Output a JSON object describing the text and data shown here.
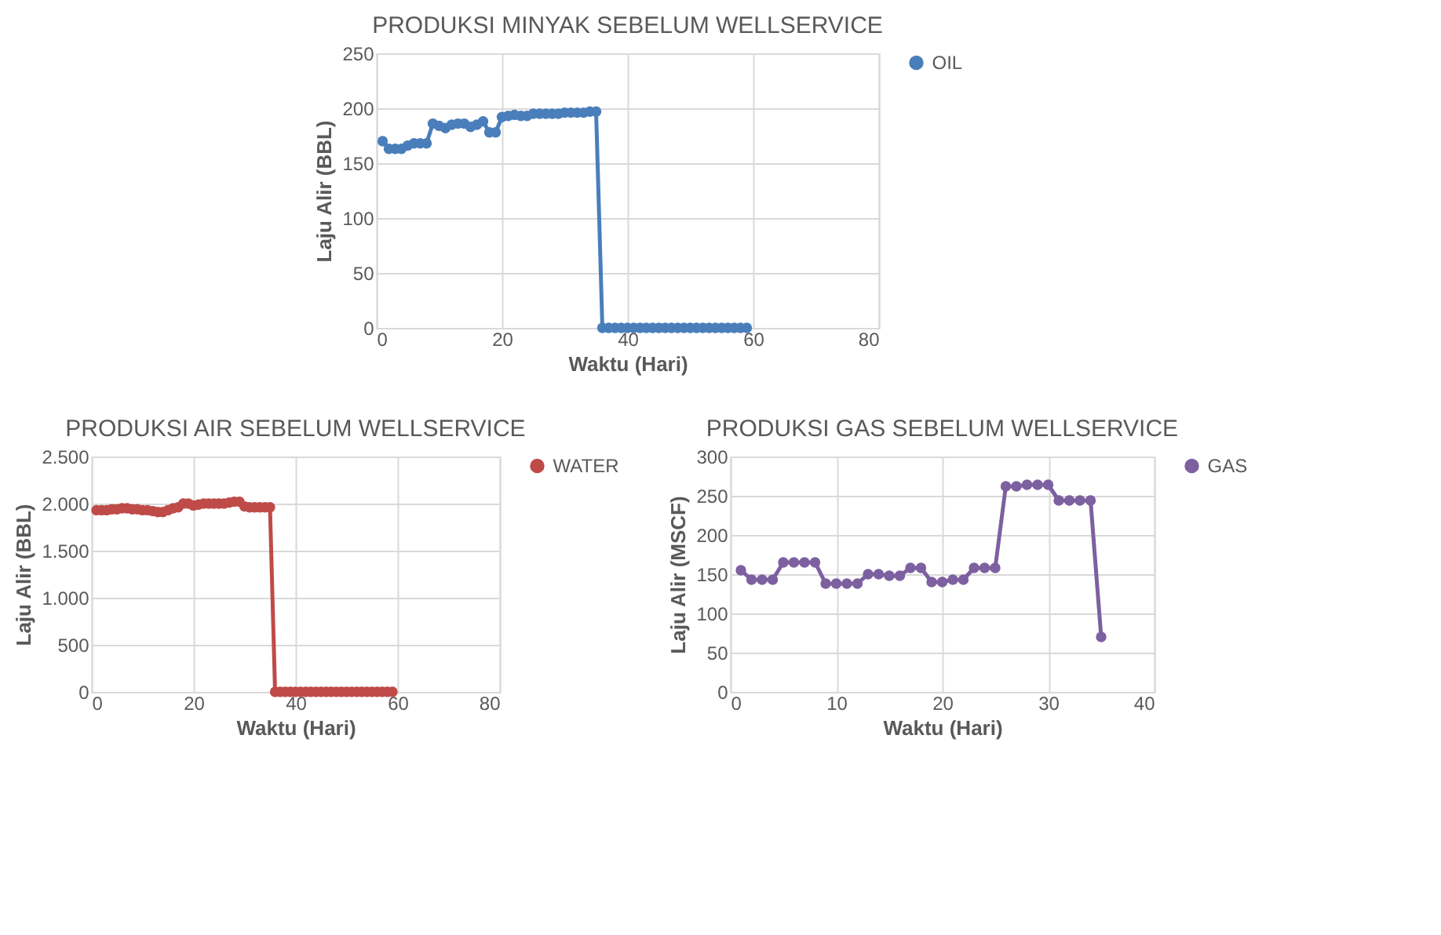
{
  "chart_data": [
    {
      "type": "line",
      "title": "PRODUKSI MINYAK SEBELUM WELLSERVICE",
      "xlabel": "Waktu (Hari)",
      "ylabel": "Laju Alir (BBL)",
      "xlim": [
        0,
        80
      ],
      "xticks": [
        0,
        20,
        40,
        60,
        80
      ],
      "ylim": [
        0,
        250
      ],
      "yticks": [
        0,
        50,
        100,
        150,
        200,
        250
      ],
      "grid": true,
      "legend": "right",
      "marker": "circle",
      "line_style": "solid",
      "x": [
        1,
        2,
        3,
        4,
        5,
        6,
        7,
        8,
        9,
        10,
        11,
        12,
        13,
        14,
        15,
        16,
        17,
        18,
        19,
        20,
        21,
        22,
        23,
        24,
        25,
        26,
        27,
        28,
        29,
        30,
        31,
        32,
        33,
        34,
        35,
        36,
        37,
        38,
        39,
        40,
        41,
        42,
        43,
        44,
        45,
        46,
        47,
        48,
        49,
        50,
        51,
        52,
        53,
        54,
        55,
        56,
        57,
        58,
        59
      ],
      "series": [
        {
          "name": "OIL",
          "color": "#4a7ebb",
          "values": [
            170,
            163,
            163,
            163,
            166,
            168,
            168,
            168,
            186,
            184,
            182,
            185,
            186,
            186,
            183,
            185,
            188,
            178,
            178,
            192,
            193,
            194,
            193,
            193,
            195,
            195,
            195,
            195,
            195,
            196,
            196,
            196,
            196,
            197,
            197,
            0,
            0,
            0,
            0,
            0,
            0,
            0,
            0,
            0,
            0,
            0,
            0,
            0,
            0,
            0,
            0,
            0,
            0,
            0,
            0,
            0,
            0,
            0,
            0
          ]
        }
      ]
    },
    {
      "type": "line",
      "title": "PRODUKSI AIR SEBELUM WELLSERVICE",
      "xlabel": "Waktu (Hari)",
      "ylabel": "Laju Alir (BBL)",
      "xlim": [
        0,
        80
      ],
      "xticks": [
        0,
        20,
        40,
        60,
        80
      ],
      "ylim": [
        0,
        2500
      ],
      "yticks": [
        0,
        500,
        {
          "value": 1000,
          "label": "1.000"
        },
        {
          "value": 1500,
          "label": "1.500"
        },
        {
          "value": 2000,
          "label": "2.000"
        },
        {
          "value": 2500,
          "label": "2.500"
        }
      ],
      "grid": true,
      "legend": "right",
      "marker": "circle",
      "line_style": "solid",
      "x": [
        1,
        2,
        3,
        4,
        5,
        6,
        7,
        8,
        9,
        10,
        11,
        12,
        13,
        14,
        15,
        16,
        17,
        18,
        19,
        20,
        21,
        22,
        23,
        24,
        25,
        26,
        27,
        28,
        29,
        30,
        31,
        32,
        33,
        34,
        35,
        36,
        37,
        38,
        39,
        40,
        41,
        42,
        43,
        44,
        45,
        46,
        47,
        48,
        49,
        50,
        51,
        52,
        53,
        54,
        55,
        56,
        57,
        58,
        59
      ],
      "series": [
        {
          "name": "WATER",
          "color": "#be4b48",
          "values": [
            1930,
            1930,
            1930,
            1940,
            1940,
            1950,
            1950,
            1940,
            1940,
            1930,
            1930,
            1920,
            1910,
            1910,
            1930,
            1950,
            1960,
            2000,
            2000,
            1980,
            1990,
            2000,
            2000,
            2000,
            2000,
            2000,
            2010,
            2020,
            2020,
            1970,
            1960,
            1960,
            1960,
            1960,
            1960,
            0,
            0,
            0,
            0,
            0,
            0,
            0,
            0,
            0,
            0,
            0,
            0,
            0,
            0,
            0,
            0,
            0,
            0,
            0,
            0,
            0,
            0,
            0,
            0
          ]
        }
      ]
    },
    {
      "type": "line",
      "title": "PRODUKSI GAS SEBELUM WELLSERVICE",
      "xlabel": "Waktu (Hari)",
      "ylabel": "Laju Alir (MSCF)",
      "xlim": [
        0,
        40
      ],
      "xticks": [
        0,
        10,
        20,
        30,
        40
      ],
      "ylim": [
        0,
        300
      ],
      "yticks": [
        0,
        50,
        100,
        150,
        200,
        250,
        300
      ],
      "grid": true,
      "legend": "right",
      "marker": "circle",
      "line_style": "solid",
      "x": [
        1,
        2,
        3,
        4,
        5,
        6,
        7,
        8,
        9,
        10,
        11,
        12,
        13,
        14,
        15,
        16,
        17,
        18,
        19,
        20,
        21,
        22,
        23,
        24,
        25,
        26,
        27,
        28,
        29,
        30,
        31,
        32,
        33,
        34,
        35
      ],
      "series": [
        {
          "name": "GAS",
          "color": "#7d60a0",
          "values": [
            155,
            143,
            143,
            143,
            165,
            165,
            165,
            165,
            138,
            138,
            138,
            138,
            150,
            150,
            148,
            148,
            158,
            158,
            140,
            140,
            143,
            143,
            158,
            158,
            158,
            262,
            262,
            264,
            264,
            264,
            244,
            244,
            244,
            244,
            70
          ]
        }
      ]
    }
  ]
}
